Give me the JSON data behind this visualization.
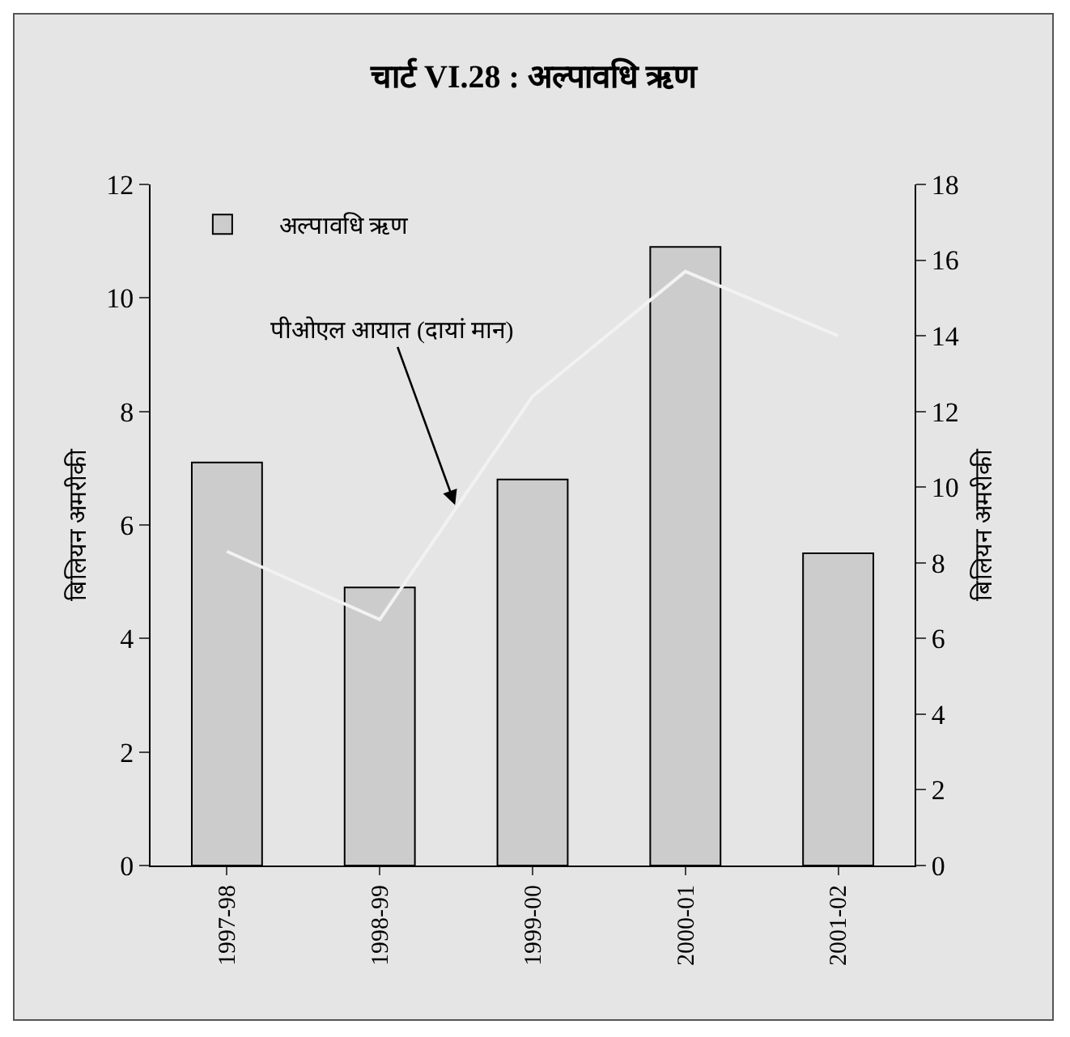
{
  "chart_data": {
    "type": "bar",
    "title": "चार्ट VI.28 : अल्पावधि ऋण",
    "ylabel": "बिलियन अमरीकी",
    "y2label": "बिलियन अमरीकी",
    "categories": [
      "1997-98",
      "1998-99",
      "1999-00",
      "2000-01",
      "2001-02"
    ],
    "series": [
      {
        "name": "अल्पावधि ऋण",
        "color": "#cccccc",
        "values": [
          7.1,
          4.9,
          6.8,
          10.9,
          5.5
        ]
      },
      {
        "name": "पीओएल आयात (दायां मान)",
        "type": "line",
        "axis": "y2",
        "color": "#f2f2f2",
        "values": [
          8.3,
          6.5,
          12.4,
          15.7,
          14.0
        ]
      }
    ],
    "ylim": [
      0,
      12
    ],
    "yticks": [
      0,
      2,
      4,
      6,
      8,
      10,
      12
    ],
    "y2lim": [
      0,
      18
    ],
    "y2ticks": [
      0,
      2,
      4,
      6,
      8,
      10,
      12,
      14,
      16,
      18
    ],
    "grid": false,
    "legend": "top left",
    "marker": "none",
    "line_style": "solid"
  }
}
